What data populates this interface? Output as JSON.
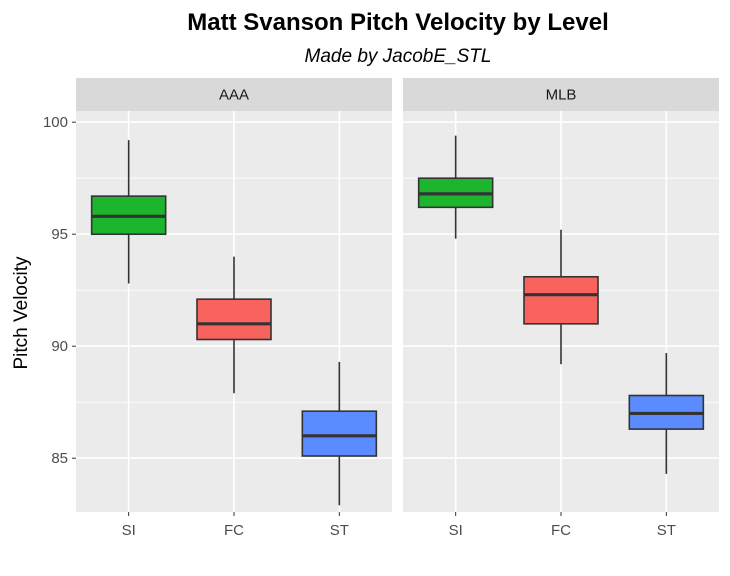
{
  "chart_data": {
    "type": "boxplot",
    "title": "Matt Svanson Pitch Velocity by Level",
    "subtitle": "Made by JacobE_STL",
    "xlabel": "",
    "ylabel": "Pitch Velocity",
    "ylim": [
      82.6,
      100.5
    ],
    "yticks": [
      85,
      90,
      95,
      100
    ],
    "categories": [
      "SI",
      "FC",
      "ST"
    ],
    "colors": {
      "SI": "#1db52e",
      "FC": "#f8645d",
      "ST": "#5b8cff"
    },
    "panels": [
      {
        "label": "AAA",
        "boxes": [
          {
            "category": "SI",
            "whisker_low": 92.8,
            "q1": 95.0,
            "median": 95.8,
            "q3": 96.7,
            "whisker_high": 99.2
          },
          {
            "category": "FC",
            "whisker_low": 87.9,
            "q1": 90.3,
            "median": 91.0,
            "q3": 92.1,
            "whisker_high": 94.0
          },
          {
            "category": "ST",
            "whisker_low": 82.9,
            "q1": 85.1,
            "median": 86.0,
            "q3": 87.1,
            "whisker_high": 89.3
          }
        ]
      },
      {
        "label": "MLB",
        "boxes": [
          {
            "category": "SI",
            "whisker_low": 94.8,
            "q1": 96.2,
            "median": 96.8,
            "q3": 97.5,
            "whisker_high": 99.4
          },
          {
            "category": "FC",
            "whisker_low": 89.2,
            "q1": 91.0,
            "median": 92.3,
            "q3": 93.1,
            "whisker_high": 95.2
          },
          {
            "category": "ST",
            "whisker_low": 84.3,
            "q1": 86.3,
            "median": 87.0,
            "q3": 87.8,
            "whisker_high": 89.7
          }
        ]
      }
    ]
  }
}
